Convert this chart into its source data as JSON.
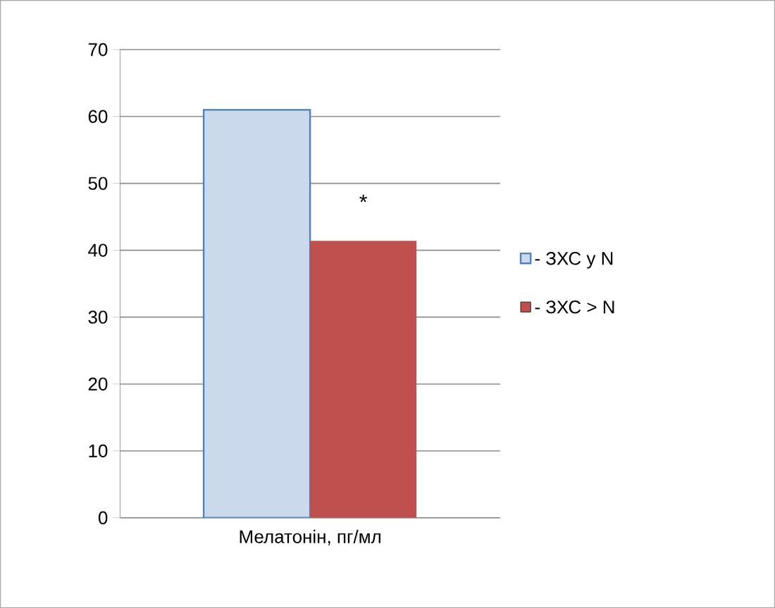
{
  "chart_data": {
    "type": "bar",
    "categories": [
      "Мелатонін, пг/мл"
    ],
    "series": [
      {
        "name": "- ЗХС у N",
        "color": "#4f81bd",
        "values": [
          61
        ]
      },
      {
        "name": "- ЗХС  > N",
        "color": "#c0504d",
        "values": [
          41.4
        ]
      }
    ],
    "annotations": [
      "*"
    ],
    "ylim": [
      0,
      70
    ],
    "yticks": [
      0,
      10,
      20,
      30,
      40,
      50,
      60,
      70
    ],
    "grid": "y",
    "legend": "right"
  }
}
